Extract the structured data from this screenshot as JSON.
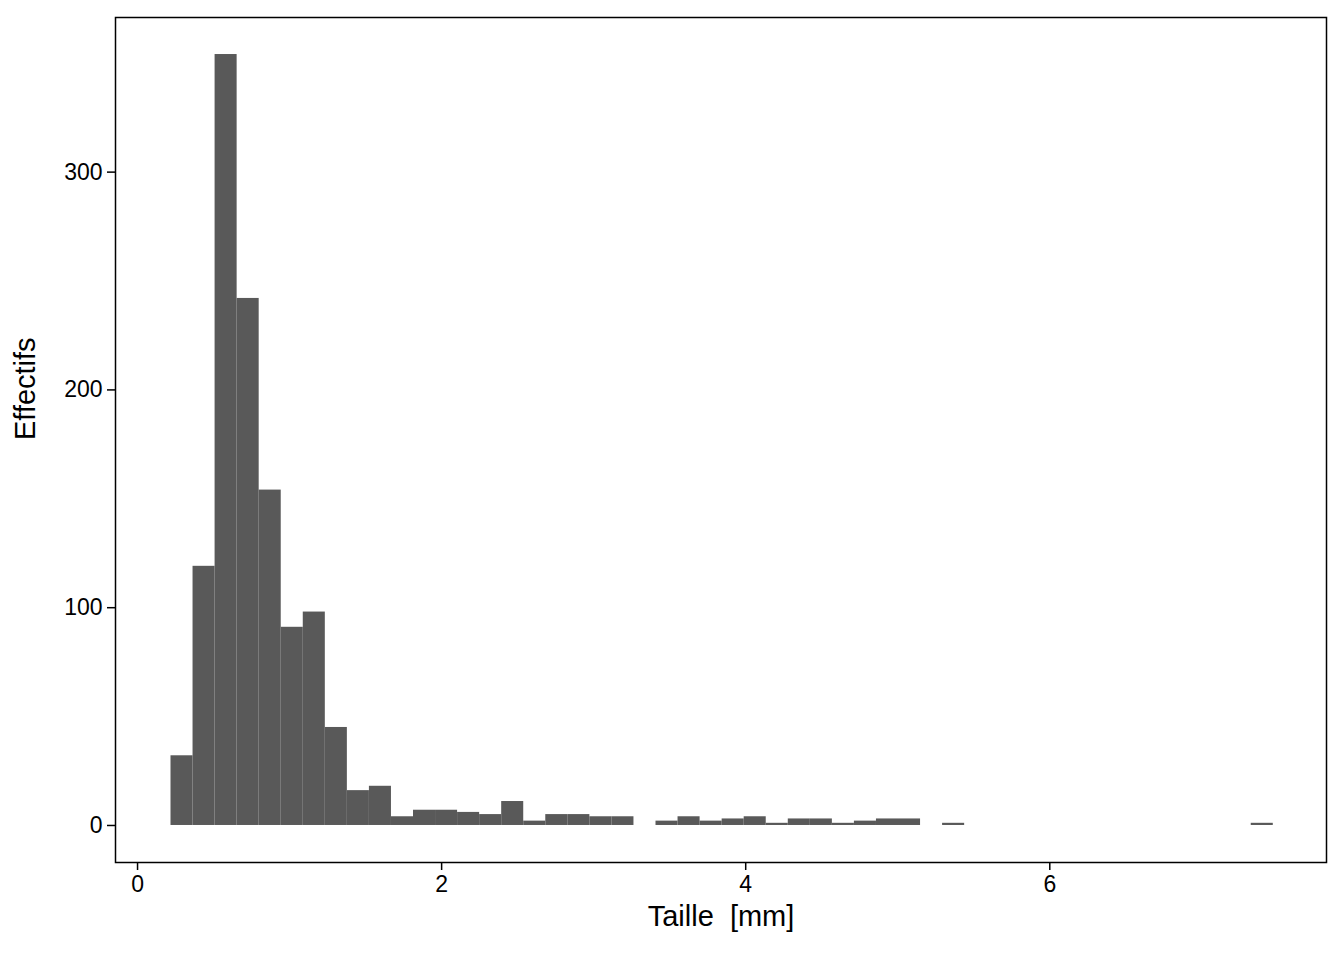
{
  "chart_data": {
    "type": "histogram",
    "x_label": "Taille  [mm]",
    "y_label": "Effectifs",
    "bins": [
      0.22,
      0.365,
      0.51,
      0.655,
      0.8,
      0.945,
      1.09,
      1.235,
      1.38,
      1.525,
      1.67,
      1.815,
      1.96,
      2.105,
      2.25,
      2.395,
      2.54,
      2.685,
      2.83,
      2.975,
      3.12,
      3.265,
      3.41,
      3.555,
      3.7,
      3.845,
      3.99,
      4.135,
      4.28,
      4.425,
      4.57,
      4.715,
      4.86,
      5.005,
      5.15,
      5.295,
      5.44,
      5.585,
      5.73,
      5.875,
      6.02,
      6.165,
      6.31,
      6.455,
      6.6,
      6.745,
      6.89,
      7.035,
      7.18,
      7.325,
      7.47
    ],
    "values": [
      32,
      119,
      354,
      242,
      154,
      91,
      98,
      45,
      16,
      18,
      4,
      7,
      7,
      6,
      5,
      11,
      2,
      5,
      5,
      4,
      4,
      0,
      2,
      4,
      2,
      3,
      4,
      1,
      3,
      3,
      1,
      2,
      3,
      3,
      0,
      1,
      0,
      0,
      0,
      0,
      0,
      0,
      0,
      0,
      0,
      0,
      0,
      0,
      0,
      1
    ],
    "color": "#595959",
    "xlim": [
      -0.145,
      7.82
    ],
    "ylim": [
      -17,
      371
    ],
    "xticks": [
      0,
      2,
      4,
      6
    ],
    "yticks": [
      0,
      100,
      200,
      300
    ],
    "grid": false
  }
}
